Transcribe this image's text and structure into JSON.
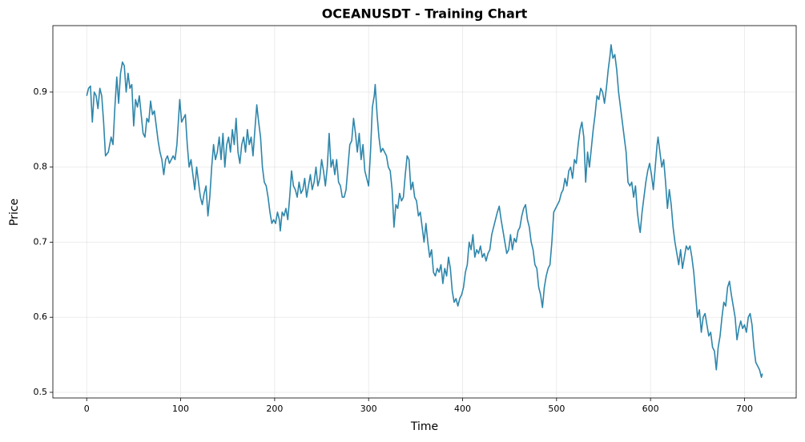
{
  "chart_data": {
    "type": "line",
    "title": "OCEANUSDT - Training Chart",
    "xlabel": "Time",
    "ylabel": "Price",
    "color": "#2e86ab",
    "grid": true,
    "xlim": [
      -36,
      755
    ],
    "xticks": [
      0,
      100,
      200,
      300,
      400,
      500,
      600,
      700
    ],
    "ylim": [
      0.4925,
      0.9885
    ],
    "yticks": [
      0.5,
      0.6,
      0.7,
      0.8,
      0.9
    ],
    "x": [
      0,
      2,
      4,
      6,
      8,
      10,
      12,
      14,
      16,
      18,
      20,
      23,
      26,
      28,
      30,
      32,
      34,
      36,
      38,
      40,
      42,
      44,
      46,
      48,
      50,
      52,
      54,
      56,
      58,
      60,
      62,
      64,
      66,
      68,
      70,
      72,
      74,
      76,
      78,
      80,
      82,
      84,
      86,
      88,
      90,
      92,
      94,
      96,
      98,
      99,
      101,
      103,
      105,
      107,
      109,
      111,
      113,
      115,
      117,
      119,
      121,
      123,
      125,
      127,
      129,
      131,
      133,
      135,
      137,
      139,
      141,
      143,
      145,
      147,
      149,
      151,
      153,
      155,
      157,
      159,
      161,
      163,
      165,
      167,
      169,
      171,
      173,
      175,
      177,
      179,
      181,
      183,
      185,
      187,
      189,
      191,
      193,
      195,
      197,
      199,
      201,
      203,
      205,
      206,
      208,
      210,
      212,
      214,
      216,
      218,
      220,
      222,
      224,
      226,
      228,
      230,
      232,
      234,
      236,
      238,
      240,
      242,
      244,
      246,
      248,
      250,
      252,
      254,
      256,
      258,
      260,
      262,
      264,
      266,
      268,
      270,
      272,
      274,
      276,
      278,
      280,
      282,
      284,
      286,
      288,
      290,
      292,
      294,
      296,
      298,
      300,
      302,
      304,
      306,
      307,
      309,
      311,
      313,
      315,
      317,
      319,
      321,
      323,
      325,
      327,
      329,
      331,
      333,
      335,
      337,
      339,
      341,
      343,
      345,
      347,
      349,
      351,
      353,
      355,
      357,
      359,
      361,
      363,
      365,
      367,
      369,
      371,
      373,
      375,
      377,
      379,
      381,
      383,
      385,
      387,
      389,
      391,
      393,
      395,
      397,
      399,
      401,
      403,
      405,
      407,
      409,
      411,
      413,
      415,
      417,
      419,
      421,
      423,
      425,
      427,
      429,
      431,
      433,
      435,
      437,
      439,
      441,
      443,
      445,
      447,
      449,
      451,
      453,
      455,
      457,
      459,
      461,
      463,
      465,
      467,
      469,
      471,
      473,
      475,
      477,
      479,
      481,
      483,
      485,
      487,
      489,
      491,
      493,
      495,
      497,
      499,
      501,
      503,
      505,
      507,
      509,
      511,
      513,
      515,
      517,
      519,
      521,
      523,
      525,
      527,
      529,
      531,
      533,
      535,
      537,
      539,
      541,
      543,
      545,
      547,
      549,
      551,
      553,
      555,
      557,
      558,
      560,
      562,
      564,
      566,
      568,
      570,
      572,
      574,
      576,
      578,
      580,
      582,
      584,
      586,
      588,
      589,
      591,
      593,
      595,
      597,
      599,
      601,
      603,
      605,
      607,
      608,
      610,
      612,
      614,
      616,
      618,
      620,
      622,
      624,
      626,
      628,
      630,
      632,
      634,
      636,
      638,
      640,
      642,
      644,
      646,
      648,
      650,
      652,
      654,
      656,
      658,
      660,
      662,
      664,
      666,
      668,
      670,
      672,
      674,
      676,
      678,
      680,
      682,
      684,
      686,
      688,
      690,
      692,
      694,
      696,
      698,
      700,
      702,
      704,
      706,
      708,
      710,
      712,
      714,
      716,
      718,
      719
    ],
    "values": [
      0.895,
      0.905,
      0.908,
      0.86,
      0.9,
      0.895,
      0.878,
      0.905,
      0.895,
      0.86,
      0.815,
      0.82,
      0.84,
      0.83,
      0.88,
      0.92,
      0.885,
      0.925,
      0.94,
      0.935,
      0.9,
      0.925,
      0.905,
      0.91,
      0.855,
      0.89,
      0.88,
      0.895,
      0.87,
      0.845,
      0.84,
      0.865,
      0.86,
      0.888,
      0.87,
      0.875,
      0.855,
      0.835,
      0.82,
      0.81,
      0.79,
      0.81,
      0.815,
      0.805,
      0.81,
      0.815,
      0.81,
      0.83,
      0.87,
      0.89,
      0.86,
      0.865,
      0.87,
      0.83,
      0.8,
      0.81,
      0.79,
      0.77,
      0.8,
      0.78,
      0.76,
      0.75,
      0.765,
      0.775,
      0.735,
      0.76,
      0.8,
      0.83,
      0.81,
      0.82,
      0.84,
      0.81,
      0.845,
      0.8,
      0.83,
      0.84,
      0.82,
      0.85,
      0.83,
      0.865,
      0.82,
      0.805,
      0.83,
      0.84,
      0.82,
      0.85,
      0.83,
      0.84,
      0.815,
      0.85,
      0.883,
      0.86,
      0.84,
      0.8,
      0.78,
      0.775,
      0.76,
      0.74,
      0.725,
      0.73,
      0.725,
      0.74,
      0.73,
      0.715,
      0.74,
      0.735,
      0.745,
      0.73,
      0.76,
      0.795,
      0.775,
      0.77,
      0.76,
      0.78,
      0.765,
      0.77,
      0.785,
      0.76,
      0.775,
      0.79,
      0.77,
      0.78,
      0.8,
      0.775,
      0.785,
      0.81,
      0.795,
      0.775,
      0.8,
      0.845,
      0.8,
      0.81,
      0.79,
      0.81,
      0.78,
      0.775,
      0.76,
      0.76,
      0.77,
      0.8,
      0.83,
      0.835,
      0.865,
      0.845,
      0.82,
      0.845,
      0.81,
      0.83,
      0.795,
      0.785,
      0.775,
      0.82,
      0.88,
      0.895,
      0.91,
      0.87,
      0.84,
      0.82,
      0.825,
      0.82,
      0.815,
      0.8,
      0.795,
      0.77,
      0.72,
      0.75,
      0.745,
      0.765,
      0.755,
      0.76,
      0.79,
      0.815,
      0.81,
      0.77,
      0.78,
      0.76,
      0.755,
      0.735,
      0.74,
      0.72,
      0.7,
      0.725,
      0.7,
      0.68,
      0.69,
      0.66,
      0.655,
      0.665,
      0.66,
      0.67,
      0.645,
      0.665,
      0.655,
      0.68,
      0.665,
      0.635,
      0.62,
      0.625,
      0.615,
      0.625,
      0.63,
      0.64,
      0.66,
      0.67,
      0.7,
      0.69,
      0.71,
      0.68,
      0.69,
      0.685,
      0.695,
      0.68,
      0.685,
      0.675,
      0.685,
      0.69,
      0.71,
      0.72,
      0.73,
      0.74,
      0.748,
      0.73,
      0.715,
      0.7,
      0.685,
      0.69,
      0.71,
      0.69,
      0.705,
      0.7,
      0.715,
      0.72,
      0.735,
      0.745,
      0.75,
      0.73,
      0.72,
      0.7,
      0.69,
      0.67,
      0.665,
      0.64,
      0.63,
      0.613,
      0.64,
      0.655,
      0.665,
      0.67,
      0.7,
      0.74,
      0.745,
      0.75,
      0.755,
      0.765,
      0.77,
      0.785,
      0.775,
      0.795,
      0.8,
      0.785,
      0.81,
      0.805,
      0.83,
      0.85,
      0.86,
      0.84,
      0.78,
      0.82,
      0.8,
      0.825,
      0.85,
      0.87,
      0.895,
      0.89,
      0.905,
      0.9,
      0.885,
      0.905,
      0.93,
      0.95,
      0.963,
      0.945,
      0.95,
      0.93,
      0.9,
      0.88,
      0.86,
      0.84,
      0.82,
      0.78,
      0.775,
      0.78,
      0.76,
      0.775,
      0.74,
      0.72,
      0.713,
      0.74,
      0.76,
      0.78,
      0.795,
      0.805,
      0.79,
      0.77,
      0.8,
      0.83,
      0.84,
      0.82,
      0.8,
      0.81,
      0.78,
      0.745,
      0.77,
      0.75,
      0.72,
      0.7,
      0.685,
      0.67,
      0.69,
      0.665,
      0.68,
      0.695,
      0.69,
      0.695,
      0.68,
      0.66,
      0.63,
      0.6,
      0.61,
      0.58,
      0.6,
      0.605,
      0.59,
      0.575,
      0.58,
      0.56,
      0.555,
      0.53,
      0.56,
      0.575,
      0.6,
      0.62,
      0.615,
      0.64,
      0.648,
      0.63,
      0.615,
      0.6,
      0.57,
      0.585,
      0.595,
      0.585,
      0.59,
      0.58,
      0.6,
      0.605,
      0.59,
      0.56,
      0.54,
      0.535,
      0.53,
      0.52,
      0.525
    ]
  }
}
